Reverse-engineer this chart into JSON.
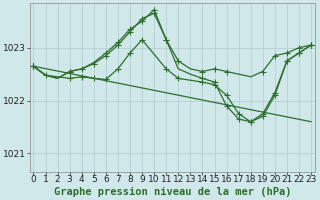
{
  "background_color": "#d0e8ea",
  "grid_color": "#b0cccc",
  "line_color": "#2d6e2d",
  "title": "Graphe pression niveau de la mer (hPa)",
  "title_fontsize": 7.5,
  "tick_fontsize": 6.5,
  "xlim": [
    -0.3,
    23.3
  ],
  "ylim": [
    1020.65,
    1023.85
  ],
  "yticks": [
    1021,
    1022,
    1023
  ],
  "xticks": [
    0,
    1,
    2,
    3,
    4,
    5,
    6,
    7,
    8,
    9,
    10,
    11,
    12,
    13,
    14,
    15,
    16,
    17,
    18,
    19,
    20,
    21,
    22,
    23
  ],
  "series": [
    {
      "x": [
        0,
        1,
        2,
        3,
        4,
        5,
        6,
        7,
        8,
        9,
        10,
        11,
        12,
        13,
        14,
        15,
        16,
        17,
        18,
        19,
        20,
        21,
        22,
        23
      ],
      "y": [
        1022.65,
        1022.48,
        1022.42,
        1022.55,
        1022.6,
        1022.7,
        1022.85,
        1023.05,
        1023.3,
        1023.55,
        1023.65,
        1023.15,
        1022.75,
        1022.6,
        1022.55,
        1022.6,
        1022.55,
        1022.5,
        1022.45,
        1022.55,
        1022.85,
        1022.9,
        1023.0,
        1023.05
      ],
      "marker": "+",
      "markersize": 4,
      "linewidth": 0.9,
      "markevery": [
        0,
        3,
        4,
        5,
        6,
        7,
        8,
        9,
        10,
        11,
        12,
        14,
        15,
        16,
        19,
        20,
        21,
        22,
        23
      ]
    },
    {
      "x": [
        0,
        1,
        2,
        3,
        4,
        5,
        6,
        7,
        8,
        9,
        10,
        11,
        12,
        13,
        14,
        15,
        16,
        17,
        18,
        19,
        20,
        21,
        22,
        23
      ],
      "y": [
        1022.65,
        1022.48,
        1022.42,
        1022.55,
        1022.6,
        1022.72,
        1022.9,
        1023.1,
        1023.35,
        1023.5,
        1023.72,
        1023.15,
        1022.6,
        1022.5,
        1022.42,
        1022.35,
        1021.9,
        1021.65,
        1021.6,
        1021.75,
        1022.15,
        1022.75,
        1022.9,
        1023.05
      ],
      "marker": "+",
      "markersize": 4,
      "linewidth": 0.9,
      "markevery": [
        0,
        3,
        6,
        7,
        8,
        9,
        10,
        11,
        14,
        15,
        16,
        17,
        18,
        19,
        20,
        21,
        22,
        23
      ]
    },
    {
      "x": [
        0,
        1,
        3,
        4,
        5,
        6,
        7,
        8,
        9,
        11,
        12,
        14,
        15,
        16,
        17,
        18,
        19,
        20,
        21,
        22,
        23
      ],
      "y": [
        1022.65,
        1022.48,
        1022.42,
        1022.45,
        1022.42,
        1022.4,
        1022.6,
        1022.9,
        1023.15,
        1022.6,
        1022.42,
        1022.35,
        1022.3,
        1022.1,
        1021.75,
        1021.6,
        1021.7,
        1022.1,
        1022.75,
        1022.9,
        1023.05
      ],
      "marker": "+",
      "markersize": 4,
      "linewidth": 0.9,
      "markevery": [
        0,
        1,
        2,
        3,
        4,
        5,
        6,
        7,
        8,
        9,
        10,
        11,
        12,
        13,
        14,
        15,
        16,
        17,
        18,
        19,
        20
      ]
    },
    {
      "x": [
        0,
        23
      ],
      "y": [
        1022.65,
        1021.6
      ],
      "marker": null,
      "markersize": 0,
      "linewidth": 0.9,
      "markevery": []
    }
  ]
}
